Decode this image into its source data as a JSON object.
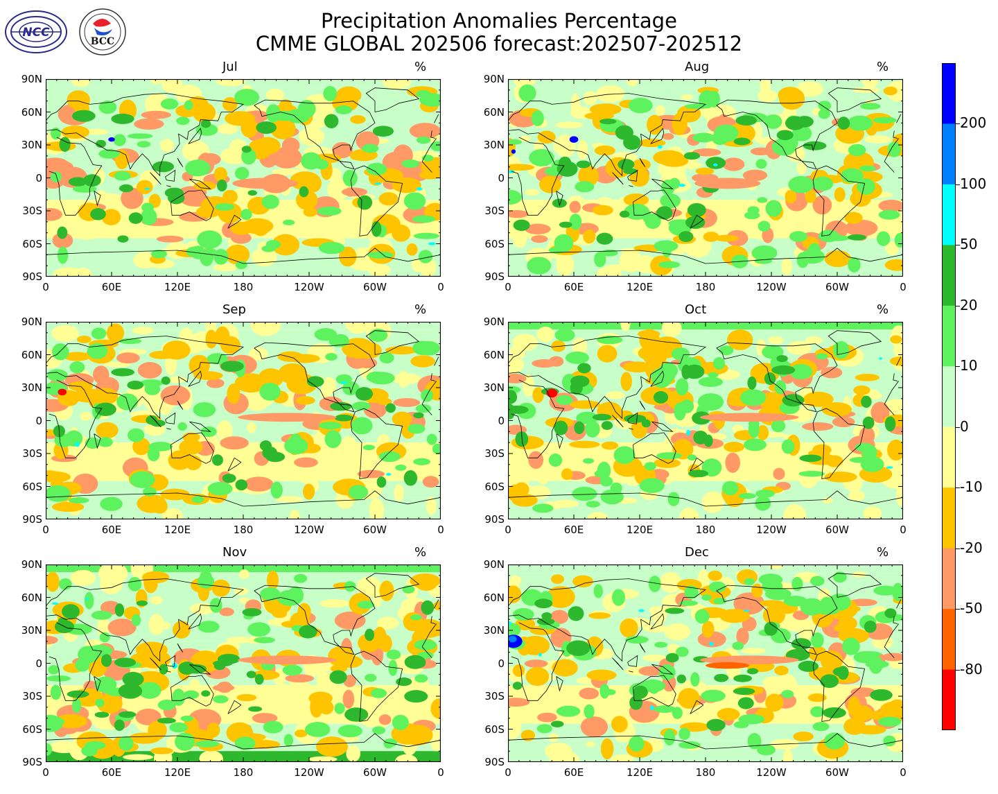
{
  "title": {
    "line1": "Precipitation Anomalies Percentage",
    "line2": "CMME GLOBAL 202506 forecast:202507-202512"
  },
  "logos": [
    {
      "name": "ncc-logo",
      "text": "NCC"
    },
    {
      "name": "bcc-logo",
      "text": "BCC"
    }
  ],
  "unit": "%",
  "panels": [
    {
      "month": "Jul"
    },
    {
      "month": "Aug"
    },
    {
      "month": "Sep"
    },
    {
      "month": "Oct"
    },
    {
      "month": "Nov"
    },
    {
      "month": "Dec"
    }
  ],
  "x_ticks": [
    "0",
    "60E",
    "120E",
    "180",
    "120W",
    "60W",
    "0"
  ],
  "y_ticks": [
    "90N",
    "60N",
    "30N",
    "0",
    "30S",
    "60S",
    "90S"
  ],
  "colorbar": {
    "labels": [
      "200",
      "100",
      "50",
      "20",
      "10",
      "0",
      "-10",
      "-20",
      "-50",
      "-80"
    ],
    "colors_top_to_bottom": [
      "#0000ff",
      "#0080ff",
      "#00ffff",
      "#2db82d",
      "#5ef25e",
      "#c8ffc8",
      "#ffff96",
      "#ffc400",
      "#ff9966",
      "#ff6400",
      "#ff0000"
    ]
  },
  "chart_data": {
    "type": "heatmap",
    "map_projection": "equirectangular",
    "lon_range": [
      0,
      360
    ],
    "lat_range": [
      -90,
      90
    ],
    "levels": [
      -80,
      -50,
      -20,
      -10,
      0,
      10,
      20,
      50,
      100,
      200
    ],
    "fill_colors": [
      "#ff0000",
      "#ff6400",
      "#ff9966",
      "#ffc400",
      "#ffff96",
      "#c8ffc8",
      "#5ef25e",
      "#2db82d",
      "#00ffff",
      "#0080ff",
      "#0000ff"
    ]
  }
}
